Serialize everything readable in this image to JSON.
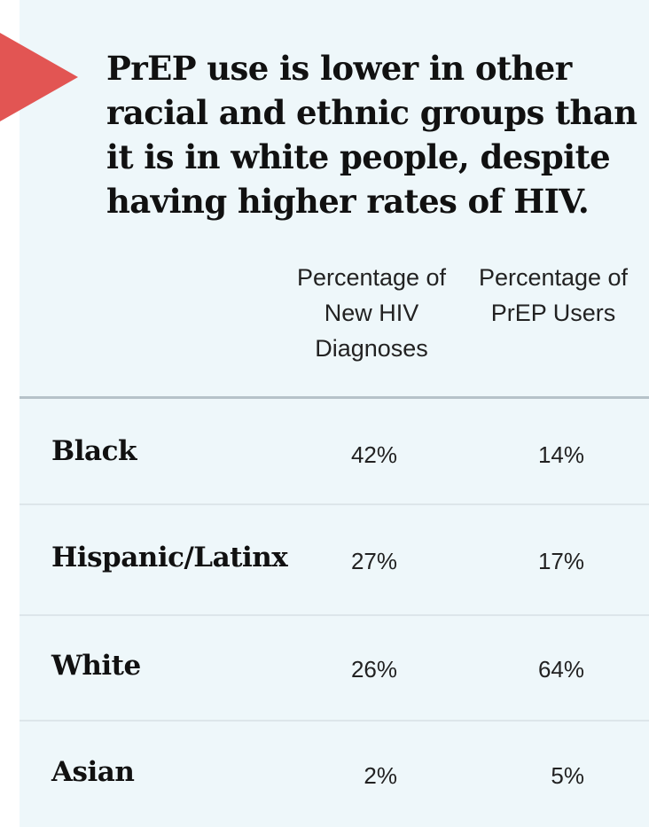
{
  "title": "PrEP use is lower in other racial and ethnic groups than it is in white people, despite having higher rates of HIV.",
  "colors": {
    "background": "#eef7fa",
    "accent_arrow": "#e25553",
    "text": "#111111"
  },
  "chart_data": {
    "type": "table",
    "columns": [
      "Percentage of New HIV Diagnoses",
      "Percentage of PrEP Users"
    ],
    "rows": [
      {
        "group": "Black",
        "new_hiv_diagnoses": "42%",
        "prep_users": "14%"
      },
      {
        "group": "Hispanic/Latinx",
        "new_hiv_diagnoses": "27%",
        "prep_users": "17%"
      },
      {
        "group": "White",
        "new_hiv_diagnoses": "26%",
        "prep_users": "64%"
      },
      {
        "group": "Asian",
        "new_hiv_diagnoses": "2%",
        "prep_users": "5%"
      }
    ]
  }
}
